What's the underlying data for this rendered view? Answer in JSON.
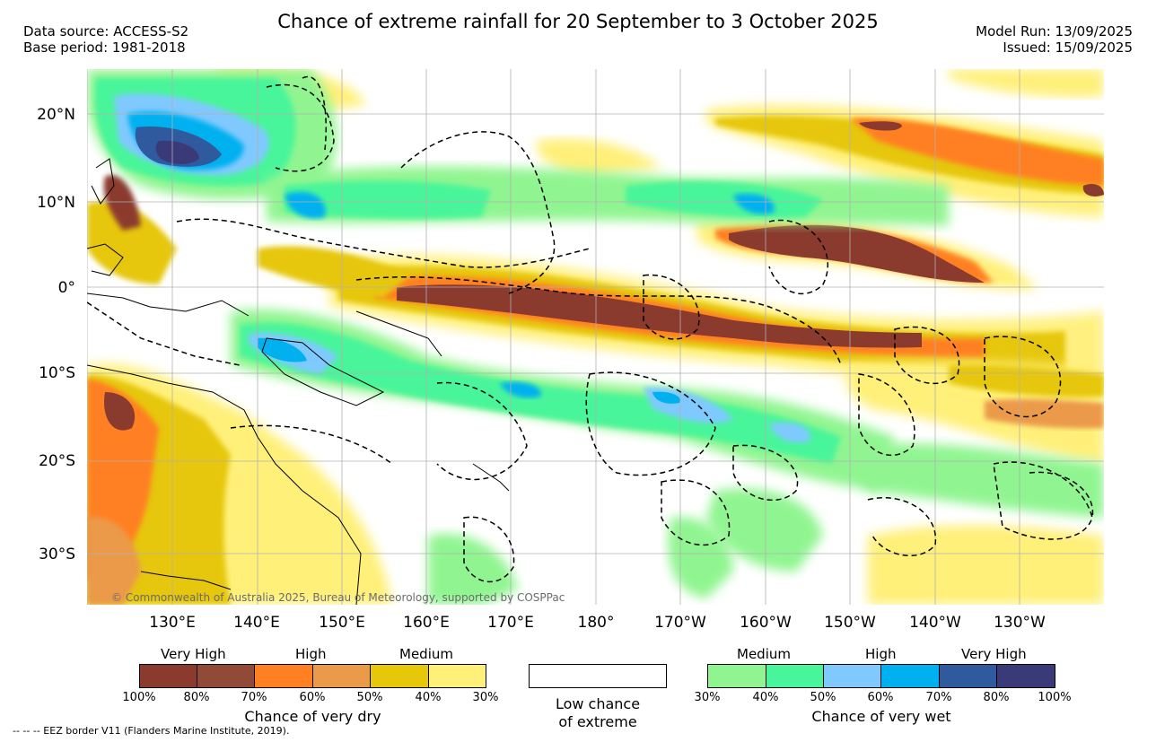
{
  "header": {
    "title": "Chance of extreme rainfall for 20 September to 3 October 2025",
    "data_source": "Data source: ACCESS-S2",
    "base_period": "Base period: 1981-2018",
    "model_run": "Model Run: 13/09/2025",
    "issued": "Issued: 15/09/2025"
  },
  "map": {
    "lat_labels": [
      "20°N",
      "10°N",
      "0°",
      "10°S",
      "20°S",
      "30°S"
    ],
    "lon_labels": [
      "130°E",
      "140°E",
      "150°E",
      "160°E",
      "170°E",
      "180°",
      "170°W",
      "160°W",
      "150°W",
      "140°W",
      "130°W"
    ],
    "copyright": "© Commonwealth of Australia 2025, Bureau of Meteorology, supported by COSPPac"
  },
  "legend": {
    "dry": {
      "headings": [
        "Very High",
        "High",
        "Medium"
      ],
      "colors": [
        "#8b3a2e",
        "#914a38",
        "#ff8022",
        "#eb9a4a",
        "#e6c70a",
        "#fff07a"
      ],
      "ticks": [
        "100%",
        "80%",
        "70%",
        "60%",
        "50%",
        "40%",
        "30%"
      ],
      "caption": "Chance of very dry"
    },
    "low": {
      "caption_line1": "Low chance",
      "caption_line2": "of extreme"
    },
    "wet": {
      "headings": [
        "Medium",
        "High",
        "Very High"
      ],
      "colors": [
        "#90f590",
        "#48f59a",
        "#7fc9ff",
        "#00b0ef",
        "#2f5b9e",
        "#3a3a78"
      ],
      "ticks": [
        "30%",
        "40%",
        "50%",
        "60%",
        "70%",
        "80%",
        "100%"
      ],
      "caption": "Chance of very wet"
    }
  },
  "footnote": "--  --  -- EEZ border V11 (Flanders Marine Institute, 2019)."
}
